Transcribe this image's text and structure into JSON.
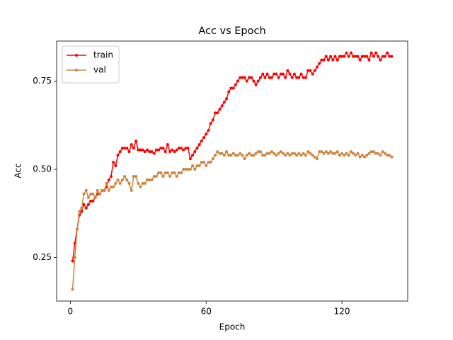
{
  "chart_data": {
    "type": "line",
    "title": "Acc vs Epoch",
    "x_label": "Epoch",
    "y_label": "Acc",
    "x": [
      1,
      2,
      3,
      4,
      5,
      6,
      7,
      8,
      9,
      10,
      11,
      12,
      13,
      14,
      15,
      16,
      17,
      18,
      19,
      20,
      21,
      22,
      23,
      24,
      25,
      26,
      27,
      28,
      29,
      30,
      31,
      32,
      33,
      34,
      35,
      36,
      37,
      38,
      39,
      40,
      41,
      42,
      43,
      44,
      45,
      46,
      47,
      48,
      49,
      50,
      51,
      52,
      53,
      54,
      55,
      56,
      57,
      58,
      59,
      60,
      61,
      62,
      63,
      64,
      65,
      66,
      67,
      68,
      69,
      70,
      71,
      72,
      73,
      74,
      75,
      76,
      77,
      78,
      79,
      80,
      81,
      82,
      83,
      84,
      85,
      86,
      87,
      88,
      89,
      90,
      91,
      92,
      93,
      94,
      95,
      96,
      97,
      98,
      99,
      100,
      101,
      102,
      103,
      104,
      105,
      106,
      107,
      108,
      109,
      110,
      111,
      112,
      113,
      114,
      115,
      116,
      117,
      118,
      119,
      120,
      121,
      122,
      123,
      124,
      125,
      126,
      127,
      128,
      129,
      130,
      131,
      132,
      133,
      134,
      135,
      136,
      137,
      138,
      139,
      140,
      141,
      142
    ],
    "series": [
      {
        "name": "train",
        "color": "#ff0000",
        "values": [
          0.24,
          0.29,
          0.33,
          0.37,
          0.38,
          0.4,
          0.39,
          0.4,
          0.41,
          0.41,
          0.42,
          0.43,
          0.43,
          0.44,
          0.44,
          0.45,
          0.47,
          0.48,
          0.52,
          0.51,
          0.54,
          0.55,
          0.56,
          0.56,
          0.56,
          0.55,
          0.57,
          0.56,
          0.58,
          0.555,
          0.555,
          0.555,
          0.55,
          0.555,
          0.55,
          0.55,
          0.545,
          0.555,
          0.555,
          0.56,
          0.56,
          0.55,
          0.57,
          0.55,
          0.555,
          0.55,
          0.555,
          0.56,
          0.56,
          0.555,
          0.56,
          0.56,
          0.53,
          0.54,
          0.55,
          0.56,
          0.57,
          0.58,
          0.59,
          0.6,
          0.61,
          0.63,
          0.64,
          0.66,
          0.66,
          0.67,
          0.68,
          0.69,
          0.7,
          0.72,
          0.73,
          0.73,
          0.74,
          0.75,
          0.76,
          0.76,
          0.76,
          0.75,
          0.76,
          0.76,
          0.75,
          0.74,
          0.75,
          0.76,
          0.77,
          0.76,
          0.77,
          0.76,
          0.76,
          0.77,
          0.77,
          0.76,
          0.77,
          0.77,
          0.76,
          0.78,
          0.77,
          0.76,
          0.77,
          0.76,
          0.76,
          0.77,
          0.76,
          0.76,
          0.78,
          0.78,
          0.77,
          0.78,
          0.79,
          0.8,
          0.81,
          0.81,
          0.82,
          0.81,
          0.82,
          0.81,
          0.82,
          0.81,
          0.82,
          0.82,
          0.82,
          0.83,
          0.82,
          0.83,
          0.82,
          0.82,
          0.82,
          0.81,
          0.82,
          0.82,
          0.82,
          0.81,
          0.83,
          0.82,
          0.83,
          0.82,
          0.81,
          0.82,
          0.82,
          0.83,
          0.82,
          0.82
        ]
      },
      {
        "name": "val",
        "color": "#cd853f",
        "values": [
          0.16,
          0.25,
          0.33,
          0.38,
          0.39,
          0.43,
          0.44,
          0.42,
          0.43,
          0.43,
          0.42,
          0.44,
          0.43,
          0.44,
          0.44,
          0.46,
          0.44,
          0.45,
          0.45,
          0.46,
          0.47,
          0.46,
          0.47,
          0.48,
          0.47,
          0.46,
          0.44,
          0.48,
          0.48,
          0.46,
          0.45,
          0.46,
          0.46,
          0.47,
          0.47,
          0.47,
          0.48,
          0.48,
          0.49,
          0.49,
          0.48,
          0.49,
          0.49,
          0.48,
          0.49,
          0.49,
          0.48,
          0.49,
          0.49,
          0.5,
          0.5,
          0.5,
          0.5,
          0.51,
          0.5,
          0.51,
          0.51,
          0.52,
          0.52,
          0.51,
          0.52,
          0.52,
          0.53,
          0.54,
          0.55,
          0.545,
          0.545,
          0.54,
          0.55,
          0.54,
          0.54,
          0.545,
          0.54,
          0.54,
          0.545,
          0.54,
          0.53,
          0.54,
          0.545,
          0.54,
          0.54,
          0.545,
          0.55,
          0.55,
          0.54,
          0.54,
          0.545,
          0.545,
          0.55,
          0.545,
          0.54,
          0.545,
          0.55,
          0.545,
          0.54,
          0.545,
          0.54,
          0.545,
          0.545,
          0.54,
          0.545,
          0.54,
          0.545,
          0.54,
          0.55,
          0.545,
          0.54,
          0.535,
          0.53,
          0.55,
          0.55,
          0.545,
          0.55,
          0.545,
          0.55,
          0.545,
          0.545,
          0.55,
          0.54,
          0.545,
          0.54,
          0.545,
          0.54,
          0.55,
          0.545,
          0.54,
          0.545,
          0.535,
          0.54,
          0.535,
          0.54,
          0.545,
          0.55,
          0.55,
          0.545,
          0.545,
          0.54,
          0.55,
          0.545,
          0.54,
          0.54,
          0.535
        ]
      }
    ],
    "xlim": [
      -6.05,
      149.05
    ],
    "ylim": [
      0.1265,
      0.8635
    ],
    "xticks": [
      0,
      60,
      120
    ],
    "yticks": [
      0.25,
      {
        "value": 0.5,
        "label": "0.50"
      },
      0.75
    ],
    "legend": "upper left",
    "grid": false
  }
}
